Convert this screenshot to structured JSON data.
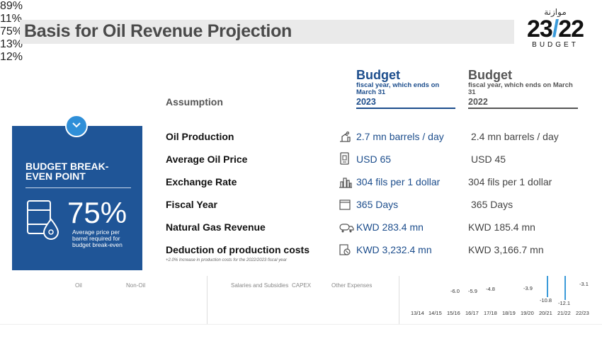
{
  "header": {
    "title": "Basis for Oil Revenue Projection",
    "logo_arabic": "موازنة",
    "logo_year_a": "23",
    "logo_year_b": "22",
    "logo_word": "BUDGET"
  },
  "columns": {
    "assumption_label": "Assumption",
    "budget_2023": {
      "heading": "Budget",
      "sub": "fiscal year, which ends on March 31",
      "year": "2023"
    },
    "budget_2022": {
      "heading": "Budget",
      "sub": "fiscal year, which ends on March 31",
      "year": "2022"
    }
  },
  "breakeven": {
    "title": "BUDGET BREAK-EVEN POINT",
    "percent": "75%",
    "description": "Average price per barrel required for budget break-even"
  },
  "rows": [
    {
      "label": "Oil Production",
      "icon": "oil-pump-icon",
      "v2023": "2.7 mn barrels / day",
      "v2022": "2.4 mn barrels / day"
    },
    {
      "label": "Average Oil Price",
      "icon": "price-tag-icon",
      "v2023": "USD 65",
      "v2022": "USD 45"
    },
    {
      "label": "Exchange Rate",
      "icon": "buildings-icon",
      "v2023": "304 fils per 1 dollar",
      "v2022": "304 fils per 1 dollar"
    },
    {
      "label": "Fiscal Year",
      "icon": "calendar-icon",
      "v2023": "365 Days",
      "v2022": "365 Days"
    },
    {
      "label": "Natural Gas Revenue",
      "icon": "gas-tanker-icon",
      "v2023": "KWD 283.4 mn",
      "v2022": "KWD 185.4 mn"
    },
    {
      "label": "Deduction of production costs",
      "icon": "cost-document-icon",
      "v2023": "KWD 3,232.4 mn",
      "v2022": "KWD 3,166.7 mn"
    }
  ],
  "footnote": "+2.0% Increase in production costs for the 2022/2023 fiscal year",
  "bottom_strip": {
    "labels_cut": [
      "Oil",
      "Non-Oil",
      "Salaries and Subsidies",
      "CAPEX",
      "Other Expenses"
    ],
    "percents": [
      "89%",
      "11%",
      "75%",
      "13%",
      "12%"
    ],
    "chart_values": [
      "-6.0",
      "-5.9",
      "-4.8",
      "-3.9",
      "-10.8",
      "-12.1",
      "-3.1"
    ],
    "chart_years": [
      "13/14",
      "14/15",
      "15/16",
      "16/17",
      "17/18",
      "18/19",
      "19/20",
      "20/21",
      "21/22",
      "22/23"
    ]
  }
}
